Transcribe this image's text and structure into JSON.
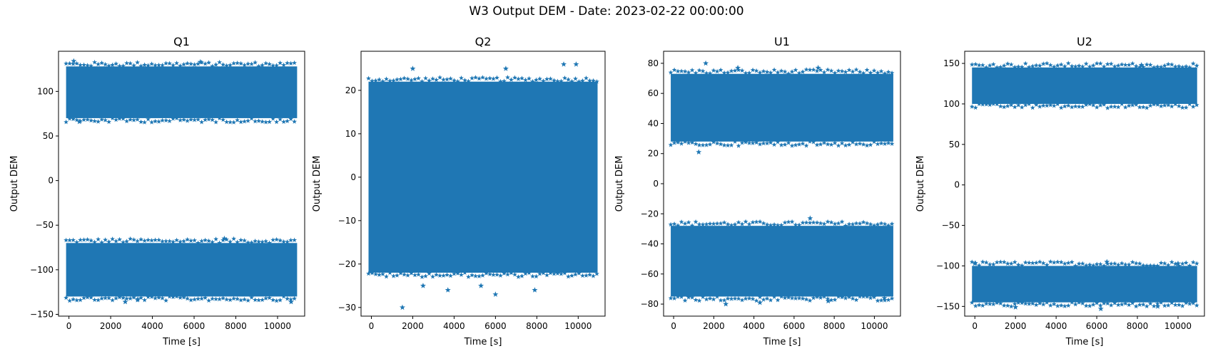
{
  "figure": {
    "title": "W3 Output DEM - Date: 2023-02-22 00:00:00"
  },
  "chart_data": [
    {
      "type": "scatter",
      "title": "Q1",
      "xlabel": "Time [s]",
      "ylabel": "Output DEM",
      "marker": "star",
      "color": "#1f77b4",
      "xlim": [
        -500,
        11300
      ],
      "ylim": [
        -152,
        145
      ],
      "xticks": [
        0,
        2000,
        4000,
        6000,
        8000,
        10000
      ],
      "yticks": [
        -150,
        -100,
        -50,
        0,
        50,
        100
      ],
      "series": [
        {
          "x_range": [
            0,
            10800
          ],
          "bands": [
            [
              -130,
              -70
            ],
            [
              70,
              128
            ]
          ]
        }
      ],
      "outliers": [
        [
          230,
          134
        ],
        [
          6300,
          133
        ],
        [
          500,
          66
        ],
        [
          7450,
          -65
        ],
        [
          2700,
          -136
        ],
        [
          10650,
          -136
        ],
        [
          3300,
          -133
        ]
      ]
    },
    {
      "type": "scatter",
      "title": "Q2",
      "xlabel": "Time [s]",
      "ylabel": "Output DEM",
      "marker": "star",
      "color": "#1f77b4",
      "xlim": [
        -500,
        11300
      ],
      "ylim": [
        -32,
        29
      ],
      "xticks": [
        0,
        2000,
        4000,
        6000,
        8000,
        10000
      ],
      "yticks": [
        -30,
        -20,
        -10,
        0,
        10,
        20
      ],
      "series": [
        {
          "x_range": [
            0,
            10800
          ],
          "bands": [
            [
              -22,
              22
            ]
          ]
        }
      ],
      "outliers": [
        [
          9300,
          26
        ],
        [
          9900,
          26
        ],
        [
          2000,
          25
        ],
        [
          6500,
          25
        ],
        [
          1500,
          -30
        ],
        [
          6000,
          -27
        ],
        [
          7900,
          -26
        ],
        [
          3700,
          -26
        ],
        [
          2500,
          -25
        ],
        [
          5300,
          -25
        ]
      ]
    },
    {
      "type": "scatter",
      "title": "U1",
      "xlabel": "Time [s]",
      "ylabel": "Output DEM",
      "marker": "star",
      "color": "#1f77b4",
      "xlim": [
        -500,
        11300
      ],
      "ylim": [
        -88,
        88
      ],
      "xticks": [
        0,
        2000,
        4000,
        6000,
        8000,
        10000
      ],
      "yticks": [
        -80,
        -60,
        -40,
        -20,
        0,
        20,
        40,
        60,
        80
      ],
      "series": [
        {
          "x_range": [
            0,
            10800
          ],
          "bands": [
            [
              -75,
              -28
            ],
            [
              28,
              73
            ]
          ]
        }
      ],
      "outliers": [
        [
          1600,
          80
        ],
        [
          3200,
          77
        ],
        [
          7200,
          77
        ],
        [
          1250,
          21
        ],
        [
          6800,
          -23
        ],
        [
          2600,
          -80
        ],
        [
          4300,
          -79
        ],
        [
          7700,
          -78
        ],
        [
          10500,
          -76
        ]
      ]
    },
    {
      "type": "scatter",
      "title": "U2",
      "xlabel": "Time [s]",
      "ylabel": "Output DEM",
      "marker": "star",
      "color": "#1f77b4",
      "xlim": [
        -500,
        11300
      ],
      "ylim": [
        -162,
        165
      ],
      "xticks": [
        0,
        2000,
        4000,
        6000,
        8000,
        10000
      ],
      "yticks": [
        -150,
        -100,
        -50,
        0,
        50,
        100,
        150
      ],
      "series": [
        {
          "x_range": [
            0,
            10800
          ],
          "bands": [
            [
              -145,
              -100
            ],
            [
              100,
              145
            ]
          ]
        }
      ],
      "outliers": [
        [
          8200,
          148
        ],
        [
          0,
          -97
        ],
        [
          6500,
          -95
        ],
        [
          10000,
          -97
        ],
        [
          6200,
          -153
        ],
        [
          2000,
          -151
        ],
        [
          9000,
          -150
        ]
      ]
    }
  ]
}
